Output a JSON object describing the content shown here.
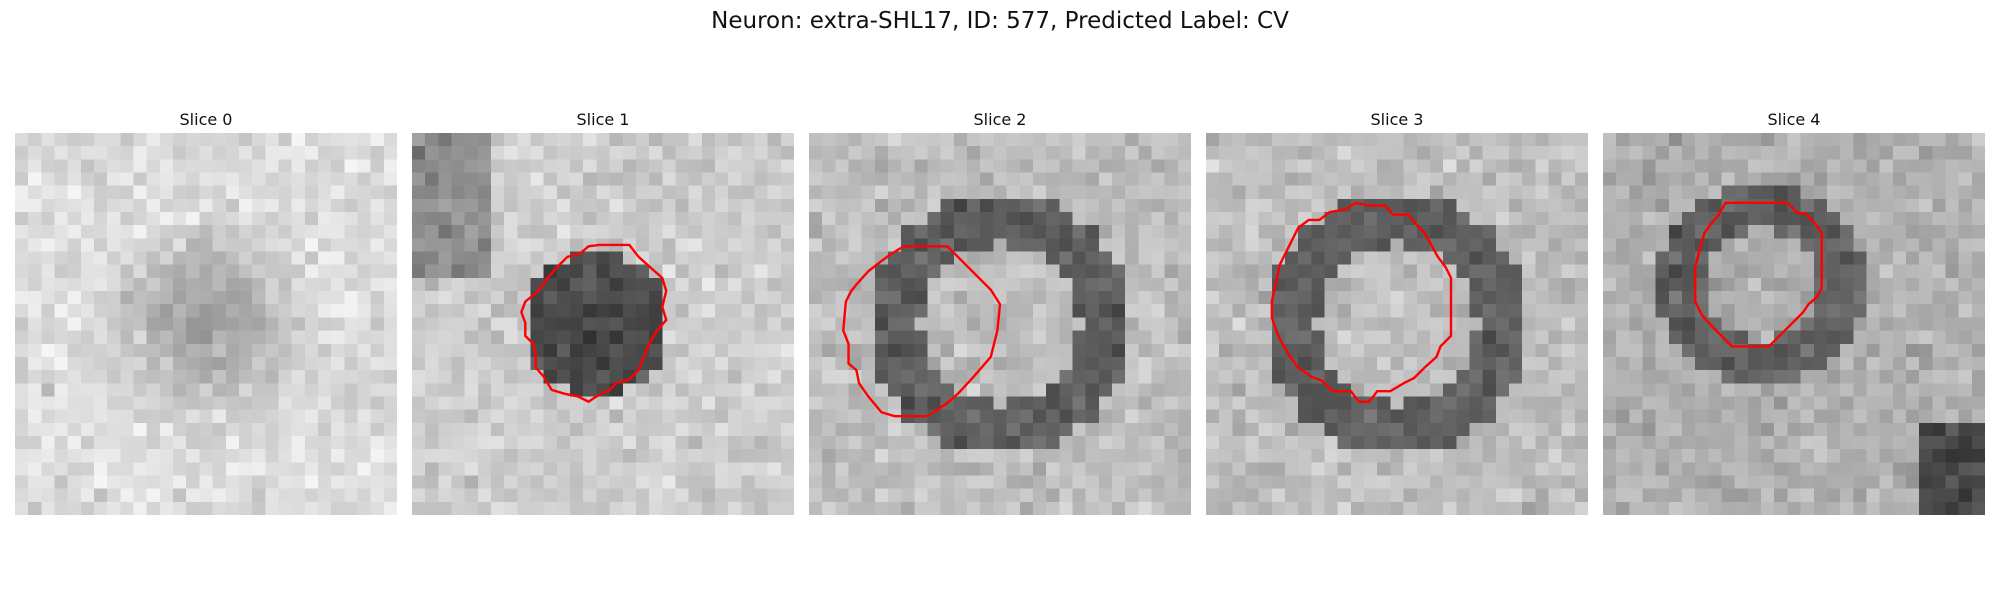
{
  "figure": {
    "title": "Neuron: extra-SHL17, ID: 577, Predicted Label: CV",
    "contour_color": "#ff0000"
  },
  "panels": [
    {
      "title": "Slice 0",
      "dark_pattern": "diffuse-dark-center",
      "contour": []
    },
    {
      "title": "Slice 1",
      "dark_pattern": "dark-filled-blob",
      "contour": [
        [
          15.0,
          8.5
        ],
        [
          16.5,
          8.5
        ],
        [
          17.2,
          9.4
        ],
        [
          18.2,
          10.3
        ],
        [
          19.0,
          11.0
        ],
        [
          19.3,
          12.0
        ],
        [
          19.0,
          13.2
        ],
        [
          19.3,
          14.2
        ],
        [
          18.6,
          15.0
        ],
        [
          18.0,
          16.0
        ],
        [
          17.6,
          17.0
        ],
        [
          17.2,
          18.0
        ],
        [
          16.5,
          18.7
        ],
        [
          15.5,
          19.0
        ],
        [
          15.0,
          19.5
        ],
        [
          14.0,
          20.0
        ],
        [
          13.4,
          20.4
        ],
        [
          12.6,
          20.0
        ],
        [
          11.6,
          19.8
        ],
        [
          10.6,
          19.5
        ],
        [
          10.0,
          18.5
        ],
        [
          9.4,
          17.8
        ],
        [
          9.4,
          17.0
        ],
        [
          9.2,
          16.0
        ],
        [
          8.6,
          15.4
        ],
        [
          8.6,
          14.4
        ],
        [
          8.3,
          13.6
        ],
        [
          8.6,
          12.8
        ],
        [
          9.6,
          12.0
        ],
        [
          10.3,
          11.0
        ],
        [
          11.0,
          10.2
        ],
        [
          11.8,
          9.4
        ],
        [
          12.7,
          9.2
        ],
        [
          13.4,
          8.6
        ],
        [
          14.2,
          8.5
        ]
      ]
    },
    {
      "title": "Slice 2",
      "dark_pattern": "dark-ring",
      "contour": [
        [
          7.2,
          8.6
        ],
        [
          10.5,
          8.6
        ],
        [
          13.8,
          11.9
        ],
        [
          14.5,
          13.0
        ],
        [
          14.3,
          15.0
        ],
        [
          13.8,
          17.0
        ],
        [
          12.5,
          18.5
        ],
        [
          11.3,
          19.8
        ],
        [
          10.5,
          20.5
        ],
        [
          9.0,
          21.5
        ],
        [
          6.5,
          21.5
        ],
        [
          5.5,
          21.2
        ],
        [
          4.5,
          20.0
        ],
        [
          3.8,
          19.0
        ],
        [
          3.6,
          18.0
        ],
        [
          3.0,
          17.5
        ],
        [
          3.0,
          16.0
        ],
        [
          2.6,
          15.0
        ],
        [
          2.8,
          12.8
        ],
        [
          3.2,
          12.0
        ],
        [
          3.6,
          11.5
        ],
        [
          4.5,
          10.5
        ],
        [
          5.4,
          9.8
        ],
        [
          6.2,
          9.2
        ]
      ]
    },
    {
      "title": "Slice 3",
      "dark_pattern": "dark-ring",
      "contour": [
        [
          12.3,
          5.5
        ],
        [
          13.6,
          5.5
        ],
        [
          14.2,
          6.2
        ],
        [
          15.4,
          6.2
        ],
        [
          16.0,
          7.0
        ],
        [
          16.6,
          7.6
        ],
        [
          17.6,
          9.4
        ],
        [
          18.2,
          10.2
        ],
        [
          18.6,
          11.0
        ],
        [
          18.6,
          15.4
        ],
        [
          17.8,
          16.2
        ],
        [
          17.5,
          17.0
        ],
        [
          16.6,
          17.8
        ],
        [
          15.8,
          18.6
        ],
        [
          15.0,
          19.0
        ],
        [
          14.0,
          19.6
        ],
        [
          13.0,
          19.6
        ],
        [
          12.4,
          20.4
        ],
        [
          11.6,
          20.4
        ],
        [
          11.0,
          19.6
        ],
        [
          9.6,
          19.6
        ],
        [
          8.8,
          18.8
        ],
        [
          8.0,
          18.5
        ],
        [
          7.0,
          17.8
        ],
        [
          6.4,
          17.0
        ],
        [
          5.8,
          16.0
        ],
        [
          5.4,
          15.2
        ],
        [
          5.0,
          14.0
        ],
        [
          5.0,
          12.8
        ],
        [
          5.3,
          11.4
        ],
        [
          5.6,
          10.0
        ],
        [
          6.3,
          8.6
        ],
        [
          7.0,
          7.2
        ],
        [
          7.8,
          6.6
        ],
        [
          8.6,
          6.6
        ],
        [
          9.4,
          6.0
        ],
        [
          10.6,
          5.8
        ],
        [
          11.4,
          5.3
        ]
      ]
    },
    {
      "title": "Slice 4",
      "dark_pattern": "dark-ring-lower-right",
      "contour": [
        [
          9.3,
          5.3
        ],
        [
          14.0,
          5.3
        ],
        [
          14.8,
          6.1
        ],
        [
          15.4,
          6.1
        ],
        [
          16.2,
          7.0
        ],
        [
          16.6,
          7.6
        ],
        [
          16.6,
          11.8
        ],
        [
          16.2,
          12.5
        ],
        [
          15.6,
          13.0
        ],
        [
          15.2,
          13.6
        ],
        [
          14.2,
          14.6
        ],
        [
          13.5,
          15.3
        ],
        [
          12.6,
          16.2
        ],
        [
          9.8,
          16.2
        ],
        [
          9.2,
          15.6
        ],
        [
          8.2,
          14.6
        ],
        [
          7.5,
          13.8
        ],
        [
          7.0,
          12.8
        ],
        [
          7.0,
          10.2
        ],
        [
          7.2,
          9.4
        ],
        [
          7.4,
          8.6
        ],
        [
          7.7,
          7.6
        ],
        [
          8.2,
          6.9
        ],
        [
          8.8,
          6.2
        ]
      ]
    }
  ]
}
